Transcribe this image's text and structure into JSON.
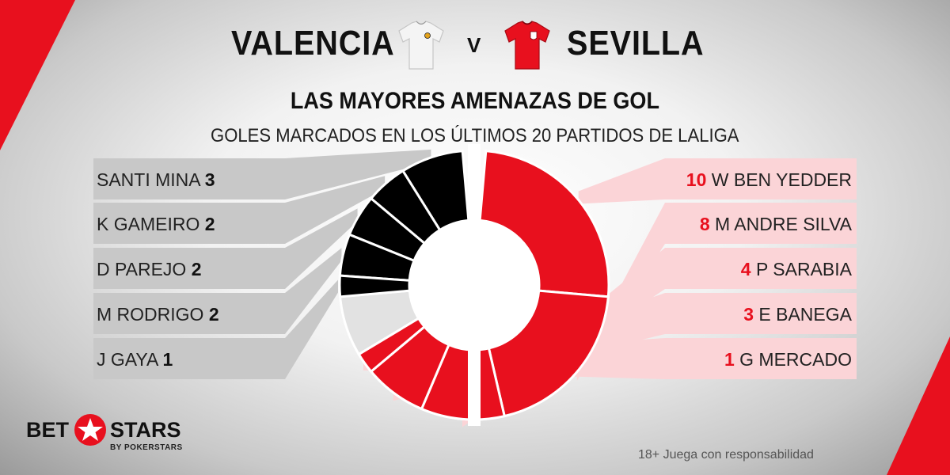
{
  "header": {
    "home_team": "VALENCIA",
    "vs": "V",
    "away_team": "SEVILLA",
    "title": "LAS MAYORES AMENAZAS DE GOL",
    "subtitle": "GOLES MARCADOS EN LOS ÚLTIMOS 20 PARTIDOS DE LALIGA"
  },
  "colors": {
    "home": "#000000",
    "home_panel": "#c8c8c8",
    "home_rest": "#e2e2e2",
    "away": "#e8101e",
    "away_panel": "#fbd4d7",
    "away_rest": "#e2e2e2",
    "home_kit": "#f4f4f4",
    "away_kit": "#e8101e"
  },
  "chart_data": [
    {
      "type": "pie",
      "series": [
        {
          "name": "VALENCIA",
          "categories": [
            "SANTI MINA",
            "K GAMEIRO",
            "D PAREJO",
            "M RODRIGO",
            "J GAYA"
          ],
          "values": [
            3,
            2,
            2,
            2,
            1
          ]
        },
        {
          "name": "SEVILLA",
          "categories": [
            "W BEN YEDDER",
            "M ANDRE SILVA",
            "P SARABIA",
            "E BANEGA",
            "G MERCADO"
          ],
          "values": [
            10,
            8,
            4,
            3,
            1
          ]
        }
      ]
    }
  ],
  "footer": {
    "brand_left": "BET",
    "brand_right": "STARS",
    "brand_sub": "BY POKERSTARS",
    "disclaimer": "18+ Juega con responsabilidad"
  }
}
